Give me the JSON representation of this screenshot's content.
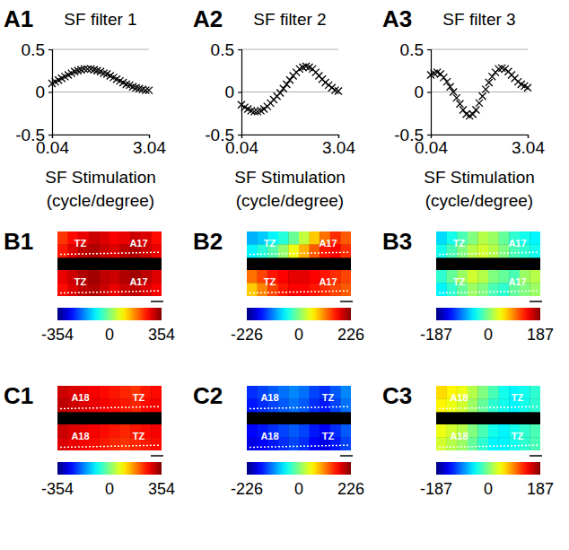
{
  "chart_data": [
    {
      "type": "scatter",
      "panel_label": "A1",
      "title": "SF filter 1",
      "xlabel": "SF Stimulation (cycle/degree)",
      "marker": "x",
      "grid": true,
      "x": [
        0.04,
        0.14,
        0.24,
        0.34,
        0.44,
        0.54,
        0.64,
        0.74,
        0.84,
        0.94,
        1.04,
        1.14,
        1.24,
        1.34,
        1.44,
        1.54,
        1.64,
        1.74,
        1.84,
        1.94,
        2.04,
        2.14,
        2.24,
        2.34,
        2.44,
        2.54,
        2.64,
        2.74,
        2.84,
        2.94,
        3.04
      ],
      "values": [
        0.1,
        0.12,
        0.14,
        0.16,
        0.18,
        0.2,
        0.22,
        0.24,
        0.25,
        0.26,
        0.27,
        0.27,
        0.27,
        0.26,
        0.25,
        0.24,
        0.22,
        0.21,
        0.19,
        0.17,
        0.15,
        0.13,
        0.11,
        0.09,
        0.08,
        0.06,
        0.05,
        0.04,
        0.03,
        0.02,
        0.02
      ],
      "xlim": [
        0.04,
        3.04
      ],
      "xticks": [
        0.04,
        3.04
      ],
      "ylim": [
        -0.5,
        0.5
      ],
      "yticks": [
        -0.5,
        0,
        0.5
      ]
    },
    {
      "type": "scatter",
      "panel_label": "A2",
      "title": "SF filter 2",
      "xlabel": "SF Stimulation (cycle/degree)",
      "marker": "x",
      "grid": true,
      "x": [
        0.04,
        0.14,
        0.24,
        0.34,
        0.44,
        0.54,
        0.64,
        0.74,
        0.84,
        0.94,
        1.04,
        1.14,
        1.24,
        1.34,
        1.44,
        1.54,
        1.64,
        1.74,
        1.84,
        1.94,
        2.04,
        2.14,
        2.24,
        2.34,
        2.44,
        2.54,
        2.64,
        2.74,
        2.84,
        2.94,
        3.04
      ],
      "values": [
        -0.15,
        -0.18,
        -0.2,
        -0.22,
        -0.23,
        -0.23,
        -0.22,
        -0.2,
        -0.17,
        -0.13,
        -0.09,
        -0.05,
        -0.01,
        0.04,
        0.09,
        0.14,
        0.19,
        0.23,
        0.27,
        0.29,
        0.3,
        0.29,
        0.27,
        0.23,
        0.19,
        0.15,
        0.11,
        0.08,
        0.05,
        0.02,
        0.01
      ],
      "xlim": [
        0.04,
        3.04
      ],
      "xticks": [
        0.04,
        3.04
      ],
      "ylim": [
        -0.5,
        0.5
      ],
      "yticks": [
        -0.5,
        0,
        0.5
      ]
    },
    {
      "type": "scatter",
      "panel_label": "A3",
      "title": "SF filter 3",
      "xlabel": "SF Stimulation (cycle/degree)",
      "marker": "x",
      "grid": true,
      "x": [
        0.04,
        0.14,
        0.24,
        0.34,
        0.44,
        0.54,
        0.64,
        0.74,
        0.84,
        0.94,
        1.04,
        1.14,
        1.24,
        1.34,
        1.44,
        1.54,
        1.64,
        1.74,
        1.84,
        1.94,
        2.04,
        2.14,
        2.24,
        2.34,
        2.44,
        2.54,
        2.64,
        2.74,
        2.84,
        2.94,
        3.04
      ],
      "values": [
        0.2,
        0.22,
        0.23,
        0.21,
        0.17,
        0.12,
        0.06,
        0.0,
        -0.07,
        -0.14,
        -0.21,
        -0.26,
        -0.28,
        -0.26,
        -0.21,
        -0.13,
        -0.05,
        0.03,
        0.11,
        0.18,
        0.23,
        0.27,
        0.28,
        0.27,
        0.24,
        0.2,
        0.16,
        0.12,
        0.09,
        0.07,
        0.05
      ],
      "xlim": [
        0.04,
        3.04
      ],
      "xticks": [
        0.04,
        3.04
      ],
      "ylim": [
        -0.5,
        0.5
      ],
      "yticks": [
        -0.5,
        0,
        0.5
      ]
    },
    {
      "type": "heatmap",
      "panel_label": "B1",
      "annotations": [
        "TZ",
        "A17",
        "TZ",
        "A17"
      ],
      "cells": [
        [
          230,
          260,
          280,
          300,
          290,
          270,
          280,
          300,
          290,
          260
        ],
        [
          250,
          290,
          310,
          320,
          300,
          290,
          310,
          320,
          300,
          280
        ],
        [
          280,
          300,
          320,
          330,
          310,
          300,
          320,
          330,
          310,
          290
        ],
        [
          260,
          290,
          310,
          320,
          300,
          280,
          300,
          310,
          290,
          270
        ]
      ],
      "colorbar": {
        "range": [
          -354,
          354
        ],
        "ticks": [
          -354,
          0,
          354
        ]
      }
    },
    {
      "type": "heatmap",
      "panel_label": "B2",
      "annotations": [
        "TZ",
        "A17",
        "TZ",
        "A17"
      ],
      "cells": [
        [
          -90,
          -80,
          -60,
          -40,
          -10,
          30,
          80,
          120,
          150,
          130
        ],
        [
          -60,
          -40,
          -20,
          10,
          50,
          90,
          130,
          160,
          170,
          150
        ],
        [
          120,
          140,
          160,
          170,
          180,
          180,
          170,
          160,
          150,
          140
        ],
        [
          80,
          110,
          140,
          160,
          170,
          170,
          160,
          150,
          140,
          130
        ]
      ],
      "colorbar": {
        "range": [
          -226,
          226
        ],
        "ticks": [
          -226,
          0,
          226
        ]
      }
    },
    {
      "type": "heatmap",
      "panel_label": "B3",
      "annotations": [
        "TZ",
        "A17",
        "TZ",
        "A17"
      ],
      "cells": [
        [
          -60,
          -40,
          -20,
          0,
          20,
          10,
          -10,
          -30,
          -40,
          -50
        ],
        [
          -40,
          -20,
          0,
          20,
          30,
          20,
          0,
          -20,
          -30,
          -40
        ],
        [
          -30,
          -10,
          10,
          30,
          20,
          0,
          -10,
          -20,
          10,
          20
        ],
        [
          -50,
          -30,
          -10,
          10,
          0,
          -20,
          -30,
          -10,
          0,
          10
        ]
      ],
      "colorbar": {
        "range": [
          -187,
          187
        ],
        "ticks": [
          -187,
          0,
          187
        ]
      }
    },
    {
      "type": "heatmap",
      "panel_label": "C1",
      "annotations": [
        "A18",
        "TZ",
        "A18",
        "TZ"
      ],
      "cells": [
        [
          300,
          290,
          280,
          270,
          260,
          250,
          240,
          230,
          250,
          260
        ],
        [
          310,
          300,
          290,
          280,
          270,
          260,
          250,
          240,
          260,
          270
        ],
        [
          300,
          290,
          280,
          270,
          260,
          250,
          240,
          250,
          260,
          270
        ],
        [
          290,
          280,
          270,
          260,
          250,
          240,
          230,
          240,
          250,
          260
        ]
      ],
      "colorbar": {
        "range": [
          -354,
          354
        ],
        "ticks": [
          -354,
          0,
          354
        ]
      }
    },
    {
      "type": "heatmap",
      "panel_label": "C2",
      "annotations": [
        "A18",
        "TZ",
        "A18",
        "TZ"
      ],
      "cells": [
        [
          -150,
          -140,
          -130,
          -120,
          -110,
          -120,
          -140,
          -150,
          -130,
          -110
        ],
        [
          -160,
          -150,
          -140,
          -130,
          -120,
          -130,
          -150,
          -160,
          -140,
          -120
        ],
        [
          -170,
          -160,
          -150,
          -140,
          -130,
          -140,
          -160,
          -170,
          -150,
          -130
        ],
        [
          -180,
          -170,
          -160,
          -150,
          -140,
          -150,
          -170,
          -180,
          -160,
          -140
        ]
      ],
      "colorbar": {
        "range": [
          -226,
          226
        ],
        "ticks": [
          -226,
          0,
          226
        ]
      }
    },
    {
      "type": "heatmap",
      "panel_label": "C3",
      "annotations": [
        "A18",
        "TZ",
        "A18",
        "TZ"
      ],
      "cells": [
        [
          60,
          50,
          40,
          20,
          0,
          -20,
          -40,
          -50,
          -40,
          -30
        ],
        [
          50,
          40,
          30,
          10,
          -10,
          -30,
          -40,
          -50,
          -40,
          -30
        ],
        [
          40,
          30,
          20,
          0,
          -20,
          -40,
          -50,
          -40,
          -30,
          -20
        ],
        [
          30,
          20,
          10,
          -10,
          -30,
          -50,
          -50,
          -40,
          -30,
          -20
        ]
      ],
      "colorbar": {
        "range": [
          -187,
          187
        ],
        "ticks": [
          -187,
          0,
          187
        ]
      }
    }
  ]
}
